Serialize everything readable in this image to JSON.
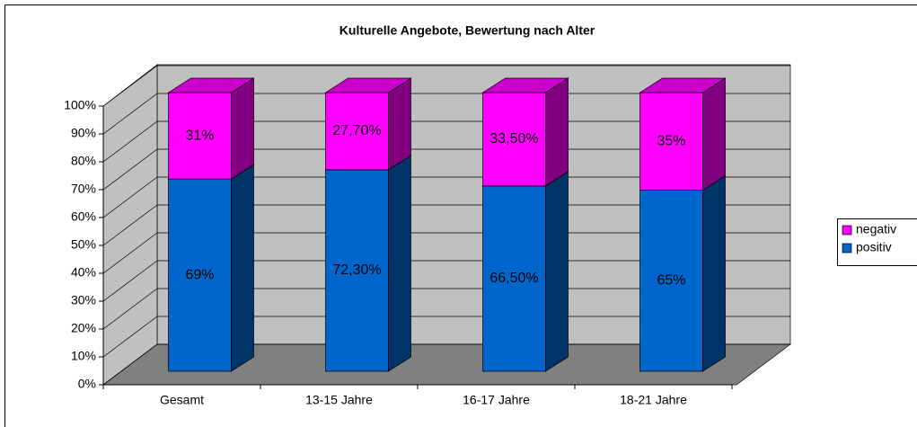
{
  "chart_data": {
    "type": "bar3d_stacked",
    "title": "Kulturelle Angebote, Bewertung nach Alter",
    "categories": [
      "Gesamt",
      "13-15 Jahre",
      "16-17 Jahre",
      "18-21 Jahre"
    ],
    "series": [
      {
        "name": "positiv",
        "color": "#0066cc",
        "values": [
          69,
          72.3,
          66.5,
          65
        ],
        "value_labels": [
          "69%",
          "72,30%",
          "66,50%",
          "65%"
        ]
      },
      {
        "name": "negativ",
        "color": "#ff00ff",
        "values": [
          31,
          27.7,
          33.5,
          35
        ],
        "value_labels": [
          "31%",
          "27,70%",
          "33,50%",
          "35%"
        ]
      }
    ],
    "ylim": [
      0,
      100
    ],
    "yticks": [
      {
        "value": 0,
        "label": "0%"
      },
      {
        "value": 10,
        "label": "10%"
      },
      {
        "value": 20,
        "label": "20%"
      },
      {
        "value": 30,
        "label": "30%"
      },
      {
        "value": 40,
        "label": "40%"
      },
      {
        "value": 50,
        "label": "50%"
      },
      {
        "value": 60,
        "label": "60%"
      },
      {
        "value": 70,
        "label": "70%"
      },
      {
        "value": 80,
        "label": "80%"
      },
      {
        "value": 90,
        "label": "90%"
      },
      {
        "value": 100,
        "label": "100%"
      }
    ],
    "grid": true,
    "legend": "right"
  }
}
